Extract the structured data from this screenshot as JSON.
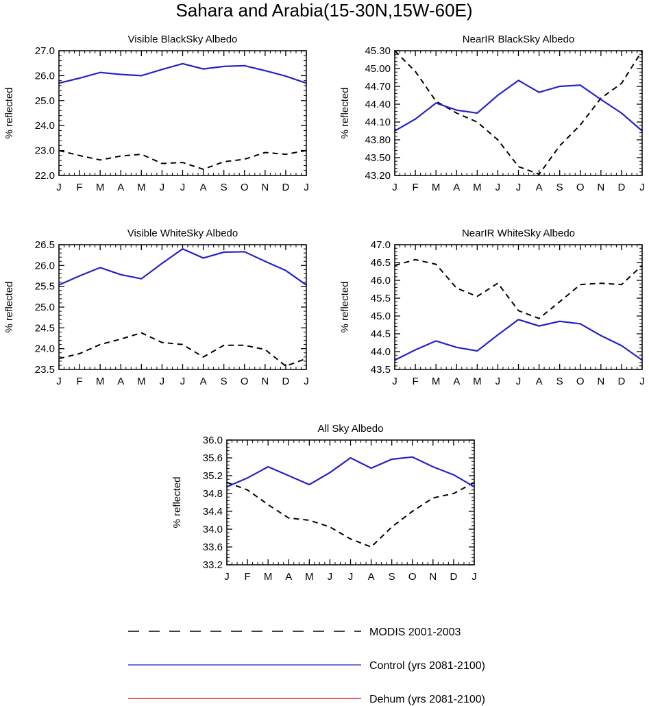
{
  "title": "Sahara and Arabia(15-30N,15W-60E)",
  "months": [
    "J",
    "F",
    "M",
    "A",
    "M",
    "J",
    "J",
    "A",
    "S",
    "O",
    "N",
    "D",
    "J"
  ],
  "legend": [
    {
      "label": "MODIS 2001-2003",
      "color": "#000000",
      "dash": true
    },
    {
      "label": "Control (yrs 2081-2100)",
      "color": "#2222cc",
      "dash": false
    },
    {
      "label": "Dehum (yrs 2081-2100)",
      "color": "#dd0000",
      "dash": false
    }
  ],
  "chart_data": [
    {
      "type": "line",
      "title": "Visible BlackSky Albedo",
      "ylabel": "% reflected",
      "ylim": [
        22.0,
        27.0
      ],
      "yticks": [
        "22.0",
        "23.0",
        "24.0",
        "25.0",
        "26.0",
        "27.0"
      ],
      "categories": [
        "J",
        "F",
        "M",
        "A",
        "M",
        "J",
        "J",
        "A",
        "S",
        "O",
        "N",
        "D",
        "J"
      ],
      "series": [
        {
          "name": "MODIS 2001-2003",
          "values": [
            23.0,
            22.8,
            22.62,
            22.78,
            22.85,
            22.48,
            22.52,
            22.25,
            22.55,
            22.65,
            22.92,
            22.85,
            23.0
          ]
        },
        {
          "name": "Control (yrs 2081-2100)",
          "values": [
            25.7,
            25.9,
            26.13,
            26.05,
            26.0,
            26.25,
            26.48,
            26.27,
            26.37,
            26.4,
            26.2,
            25.98,
            25.7
          ]
        }
      ]
    },
    {
      "type": "line",
      "title": "NearIR BlackSky Albedo",
      "ylabel": "% reflected",
      "ylim": [
        43.2,
        45.3
      ],
      "yticks": [
        "43.20",
        "43.50",
        "43.80",
        "44.10",
        "44.40",
        "44.70",
        "45.00",
        "45.30"
      ],
      "categories": [
        "J",
        "F",
        "M",
        "A",
        "M",
        "J",
        "J",
        "A",
        "S",
        "O",
        "N",
        "D",
        "J"
      ],
      "series": [
        {
          "name": "MODIS 2001-2003",
          "values": [
            45.3,
            44.95,
            44.45,
            44.25,
            44.1,
            43.8,
            43.35,
            43.22,
            43.7,
            44.05,
            44.5,
            44.75,
            45.3
          ]
        },
        {
          "name": "Control (yrs 2081-2100)",
          "values": [
            43.95,
            44.15,
            44.42,
            44.3,
            44.25,
            44.55,
            44.8,
            44.6,
            44.7,
            44.72,
            44.48,
            44.25,
            43.95
          ]
        }
      ]
    },
    {
      "type": "line",
      "title": "Visible WhiteSky Albedo",
      "ylabel": "% reflected",
      "ylim": [
        23.5,
        26.5
      ],
      "yticks": [
        "23.5",
        "24.0",
        "24.5",
        "25.0",
        "25.5",
        "26.0",
        "26.5"
      ],
      "categories": [
        "J",
        "F",
        "M",
        "A",
        "M",
        "J",
        "J",
        "A",
        "S",
        "O",
        "N",
        "D",
        "J"
      ],
      "series": [
        {
          "name": "MODIS 2001-2003",
          "values": [
            23.76,
            23.88,
            24.1,
            24.23,
            24.38,
            24.15,
            24.1,
            23.8,
            24.08,
            24.08,
            23.98,
            23.58,
            23.76
          ]
        },
        {
          "name": "Control (yrs 2081-2100)",
          "values": [
            25.53,
            25.75,
            25.95,
            25.78,
            25.68,
            26.05,
            26.4,
            26.18,
            26.32,
            26.33,
            26.1,
            25.88,
            25.53
          ]
        }
      ]
    },
    {
      "type": "line",
      "title": "NearIR WhiteSky Albedo",
      "ylabel": "% reflected",
      "ylim": [
        43.5,
        47.0
      ],
      "yticks": [
        "43.5",
        "44.0",
        "44.5",
        "45.0",
        "45.5",
        "46.0",
        "46.5",
        "47.0"
      ],
      "categories": [
        "J",
        "F",
        "M",
        "A",
        "M",
        "J",
        "J",
        "A",
        "S",
        "O",
        "N",
        "D",
        "J"
      ],
      "series": [
        {
          "name": "MODIS 2001-2003",
          "values": [
            46.42,
            46.58,
            46.45,
            45.78,
            45.55,
            45.92,
            45.15,
            44.93,
            45.4,
            45.88,
            45.92,
            45.88,
            46.42
          ]
        },
        {
          "name": "Control (yrs 2081-2100)",
          "values": [
            43.76,
            44.05,
            44.3,
            44.12,
            44.02,
            44.47,
            44.9,
            44.72,
            44.85,
            44.78,
            44.45,
            44.17,
            43.76
          ]
        }
      ]
    },
    {
      "type": "line",
      "title": "All Sky Albedo",
      "ylabel": "% reflected",
      "ylim": [
        33.2,
        36.0
      ],
      "yticks": [
        "33.2",
        "33.6",
        "34.0",
        "34.4",
        "34.8",
        "35.2",
        "35.6",
        "36.0"
      ],
      "categories": [
        "J",
        "F",
        "M",
        "A",
        "M",
        "J",
        "J",
        "A",
        "S",
        "O",
        "N",
        "D",
        "J"
      ],
      "series": [
        {
          "name": "MODIS 2001-2003",
          "values": [
            35.05,
            34.88,
            34.55,
            34.25,
            34.2,
            34.05,
            33.78,
            33.6,
            34.05,
            34.4,
            34.7,
            34.8,
            35.05
          ]
        },
        {
          "name": "Control (yrs 2081-2100)",
          "values": [
            34.95,
            35.15,
            35.4,
            35.2,
            35.0,
            35.27,
            35.6,
            35.37,
            35.57,
            35.62,
            35.4,
            35.22,
            34.95
          ]
        }
      ]
    }
  ]
}
